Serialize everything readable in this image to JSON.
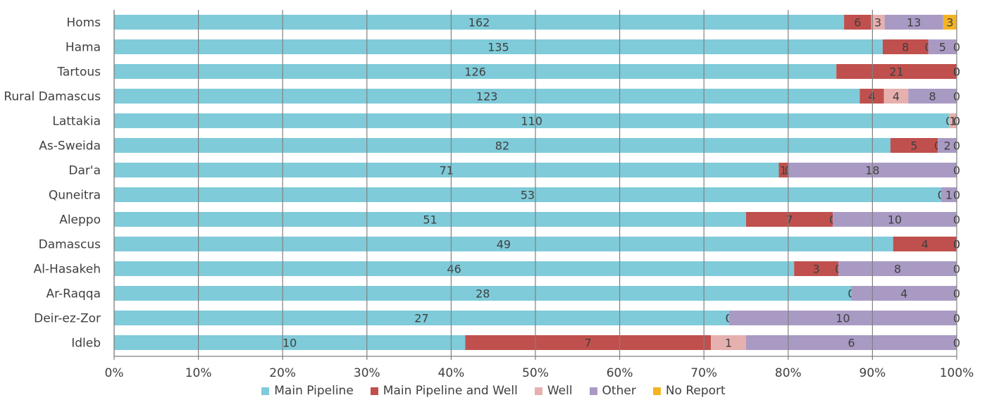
{
  "chart_data": {
    "type": "bar",
    "orientation": "horizontal",
    "stacked": "percent",
    "categories": [
      "Homs",
      "Hama",
      "Tartous",
      "Rural Damascus",
      "Lattakia",
      "As-Sweida",
      "Dar'a",
      "Quneitra",
      "Aleppo",
      "Damascus",
      "Al-Hasakeh",
      "Ar-Raqqa",
      "Deir-ez-Zor",
      "Idleb"
    ],
    "series": [
      {
        "name": "Main Pipeline",
        "color": "#7fcbd9",
        "values": [
          162,
          135,
          126,
          123,
          110,
          82,
          71,
          53,
          51,
          49,
          46,
          28,
          27,
          10
        ]
      },
      {
        "name": "Main Pipeline and Well",
        "color": "#c0504d",
        "values": [
          6,
          8,
          21,
          4,
          0,
          5,
          1,
          0,
          7,
          4,
          3,
          0,
          0,
          7
        ]
      },
      {
        "name": "Well",
        "color": "#e6b0ae",
        "values": [
          3,
          0,
          0,
          4,
          1,
          0,
          0,
          0,
          0,
          0,
          0,
          0,
          0,
          1
        ]
      },
      {
        "name": "Other",
        "color": "#a99ac4",
        "values": [
          13,
          5,
          0,
          8,
          0,
          2,
          18,
          1,
          10,
          0,
          8,
          4,
          10,
          6
        ]
      },
      {
        "name": "No Report",
        "color": "#f5b323",
        "values": [
          3,
          0,
          0,
          0,
          0,
          0,
          0,
          0,
          0,
          0,
          0,
          0,
          0,
          0
        ]
      }
    ],
    "x_ticks": [
      "0%",
      "10%",
      "20%",
      "30%",
      "40%",
      "50%",
      "60%",
      "70%",
      "80%",
      "90%",
      "100%"
    ],
    "xlim": [
      0,
      100
    ],
    "grid": "vertical",
    "legend_position": "bottom"
  }
}
